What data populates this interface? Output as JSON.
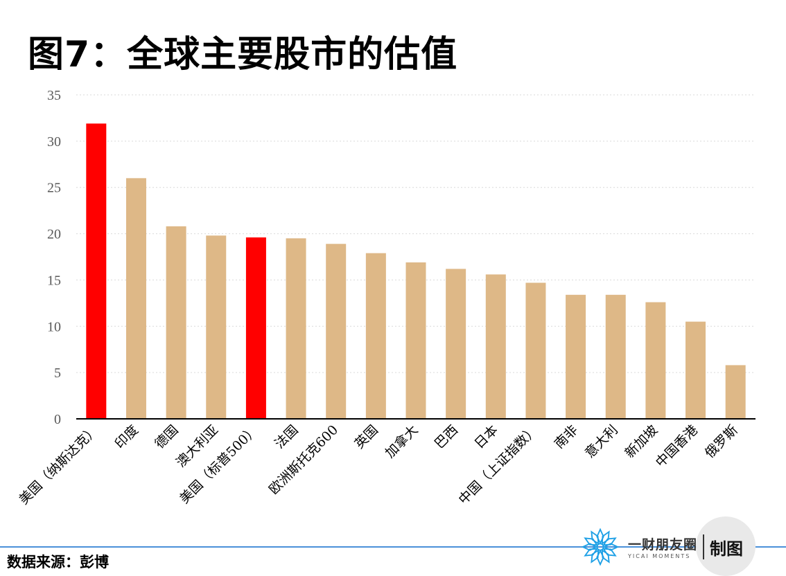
{
  "title": "图7：全球主要股市的估值",
  "source": "数据来源：彭博",
  "brand": {
    "name": "一财朋友圈",
    "en": "YICAI MOMENTS",
    "suffix": "制图",
    "logo_icon": "snowflake-icon",
    "logo_color": "#1ea0e6"
  },
  "chart_data": {
    "type": "bar",
    "categories": [
      "美国（纳斯达克）",
      "印度",
      "德国",
      "澳大利亚",
      "美国（标普500）",
      "法国",
      "欧洲斯托克600",
      "英国",
      "加拿大",
      "巴西",
      "日本",
      "中国（上证指数）",
      "南非",
      "意大利",
      "新加坡",
      "中国香港",
      "俄罗斯"
    ],
    "values": [
      31.9,
      26.0,
      20.8,
      19.8,
      19.6,
      19.5,
      18.9,
      17.9,
      16.9,
      16.2,
      15.6,
      14.7,
      13.4,
      13.4,
      12.6,
      10.5,
      5.8
    ],
    "colors": [
      "#ff0000",
      "#deb887",
      "#deb887",
      "#deb887",
      "#ff0000",
      "#deb887",
      "#deb887",
      "#deb887",
      "#deb887",
      "#deb887",
      "#deb887",
      "#deb887",
      "#deb887",
      "#deb887",
      "#deb887",
      "#deb887",
      "#deb887"
    ],
    "ylim": [
      0,
      35
    ],
    "yticks": [
      0,
      5,
      10,
      15,
      20,
      25,
      30,
      35
    ],
    "grid": true,
    "xlabel": "",
    "ylabel": ""
  }
}
